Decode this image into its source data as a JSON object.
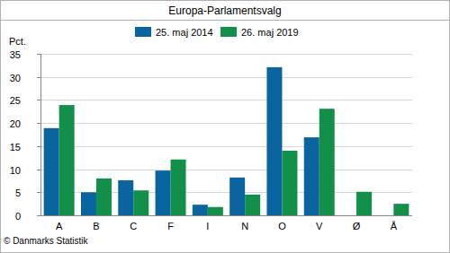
{
  "chart_data": {
    "type": "bar",
    "title": "Europa-Parlamentsvalg",
    "y_label": "Pct.",
    "source": "© Danmarks Statistik",
    "categories": [
      "A",
      "B",
      "C",
      "F",
      "I",
      "N",
      "O",
      "V",
      "Ø",
      "Å"
    ],
    "series": [
      {
        "name": "25. maj 2014",
        "color": "#0a64a0",
        "values": [
          18.9,
          5.0,
          7.6,
          9.7,
          2.3,
          8.2,
          32.1,
          16.9,
          null,
          null
        ]
      },
      {
        "name": "26. maj 2019",
        "color": "#12904a",
        "values": [
          23.9,
          8.0,
          5.4,
          12.1,
          1.8,
          4.5,
          14.0,
          23.1,
          5.1,
          2.5
        ]
      }
    ],
    "ylim": [
      0,
      35
    ],
    "yticks": [
      0,
      5,
      10,
      15,
      20,
      25,
      30,
      35
    ],
    "grid": true,
    "legend": "top"
  }
}
